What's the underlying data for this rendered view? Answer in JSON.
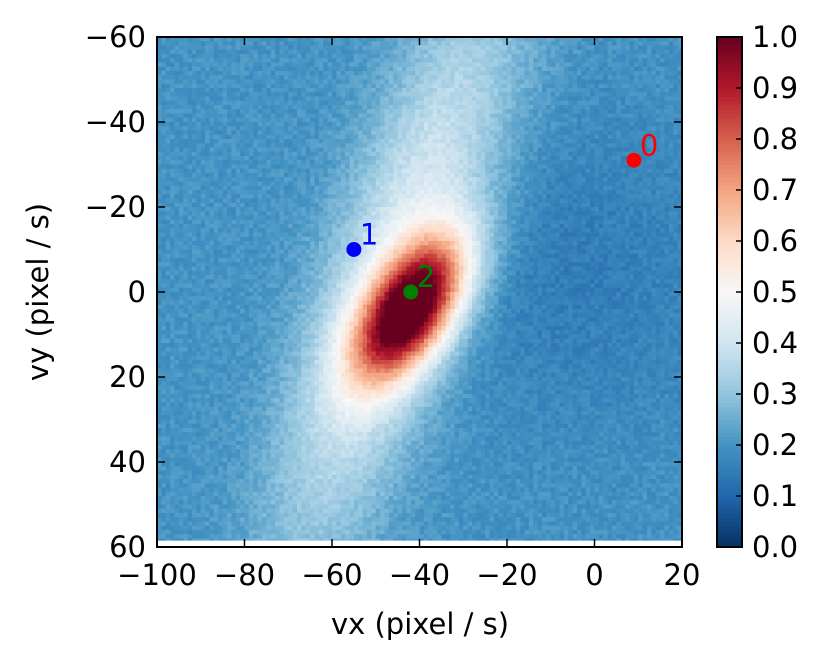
{
  "chart_data": {
    "type": "heatmap",
    "title": "",
    "xlabel": "vx (pixel / s)",
    "ylabel": "vy (pixel / s)",
    "xlim": [
      -100,
      20
    ],
    "ylim": [
      -60,
      60
    ],
    "y_inverted": true,
    "xticks": [
      -100,
      -80,
      -60,
      -40,
      -20,
      0,
      20
    ],
    "yticks": [
      -60,
      -40,
      -20,
      0,
      20,
      40,
      60
    ],
    "colormap": "RdBu_r",
    "colorbar": {
      "range": [
        0.0,
        1.0
      ],
      "ticks": [
        "0.0",
        "0.1",
        "0.2",
        "0.3",
        "0.4",
        "0.5",
        "0.6",
        "0.7",
        "0.8",
        "0.9",
        "1.0"
      ]
    },
    "heatmap_model": {
      "background": 0.2,
      "peak": {
        "x": -42,
        "y": 4,
        "value": 0.98,
        "sigma_major": 13,
        "sigma_minor": 6.5,
        "angle_deg": -58
      },
      "halo": {
        "x": -45,
        "y": -5,
        "value": 0.25,
        "sigma_major": 48,
        "sigma_minor": 11,
        "angle_deg": -72
      },
      "dark_patch": {
        "x": -5,
        "y": -5,
        "value": -0.05,
        "sigma": 25
      },
      "x_bins": 120,
      "y_bins": 120
    },
    "points": [
      {
        "label": "0",
        "x": 9,
        "y": -31,
        "color": "#ff0000"
      },
      {
        "label": "1",
        "x": -55,
        "y": -10,
        "color": "#0000ff"
      },
      {
        "label": "2",
        "x": -42,
        "y": 0,
        "color": "#008000"
      }
    ]
  }
}
